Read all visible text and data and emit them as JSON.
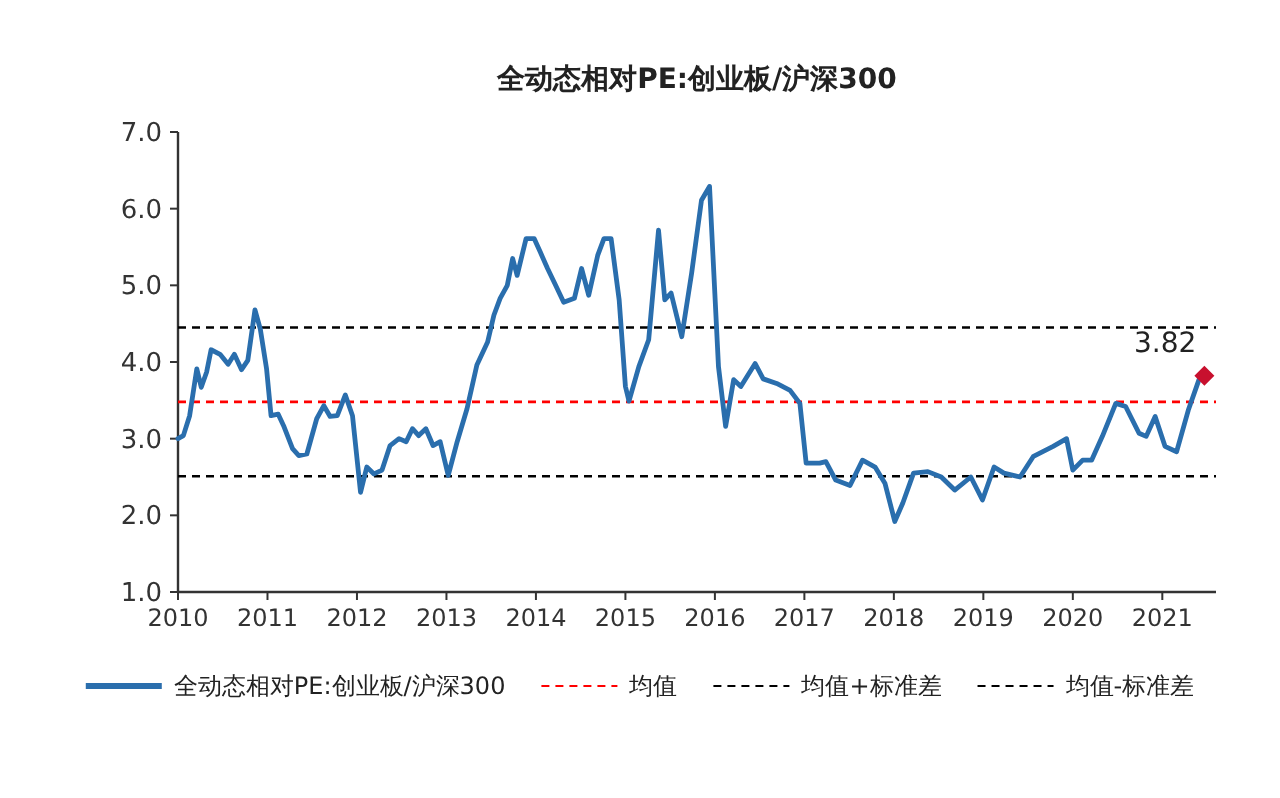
{
  "chart_data": {
    "type": "line",
    "title": "全动态相对PE:创业板/沪深300",
    "xlim": [
      2010,
      2021.6
    ],
    "xticks": [
      2010,
      2011,
      2012,
      2013,
      2014,
      2015,
      2016,
      2017,
      2018,
      2019,
      2020,
      2021
    ],
    "ylim": [
      1,
      7
    ],
    "yticks": [
      {
        "value": 1,
        "label": "1.0"
      },
      {
        "value": 2,
        "label": "2.0"
      },
      {
        "value": 3,
        "label": "3.0"
      },
      {
        "value": 4,
        "label": "4.0"
      },
      {
        "value": 5,
        "label": "5.0"
      },
      {
        "value": 6,
        "label": "6.0"
      },
      {
        "value": 7,
        "label": "7.0"
      }
    ],
    "grid": false,
    "legend": "bottom",
    "marker": "none",
    "line_style": "solid",
    "series": [
      {
        "name": "全动态相对PE:创业板/沪深300",
        "color": "#2a6ead",
        "x": [
          2010.0,
          2010.06,
          2010.13,
          2010.21,
          2010.26,
          2010.32,
          2010.37,
          2010.47,
          2010.56,
          2010.63,
          2010.71,
          2010.78,
          2010.86,
          2010.92,
          2010.99,
          2011.04,
          2011.12,
          2011.18,
          2011.28,
          2011.35,
          2011.44,
          2011.55,
          2011.63,
          2011.7,
          2011.78,
          2011.87,
          2011.95,
          2012.04,
          2012.11,
          2012.19,
          2012.28,
          2012.37,
          2012.47,
          2012.55,
          2012.62,
          2012.69,
          2012.77,
          2012.85,
          2012.93,
          2013.02,
          2013.12,
          2013.23,
          2013.34,
          2013.46,
          2013.53,
          2013.6,
          2013.68,
          2013.74,
          2013.79,
          2013.89,
          2013.98,
          2014.05,
          2014.13,
          2014.22,
          2014.31,
          2014.43,
          2014.51,
          2014.59,
          2014.69,
          2014.76,
          2014.84,
          2014.93,
          2015.0,
          2015.04,
          2015.15,
          2015.26,
          2015.37,
          2015.44,
          2015.51,
          2015.63,
          2015.74,
          2015.85,
          2015.94,
          2016.04,
          2016.12,
          2016.21,
          2016.29,
          2016.45,
          2016.54,
          2016.69,
          2016.84,
          2016.95,
          2017.02,
          2017.17,
          2017.24,
          2017.35,
          2017.51,
          2017.65,
          2017.79,
          2017.9,
          2018.01,
          2018.1,
          2018.22,
          2018.38,
          2018.53,
          2018.68,
          2018.86,
          2018.99,
          2019.12,
          2019.23,
          2019.41,
          2019.56,
          2019.78,
          2019.93,
          2020.0,
          2020.11,
          2020.21,
          2020.33,
          2020.48,
          2020.59,
          2020.74,
          2020.82,
          2020.92,
          2021.03,
          2021.16,
          2021.29,
          2021.41,
          2021.47
        ],
        "values": [
          3.0,
          3.04,
          3.3,
          3.91,
          3.67,
          3.87,
          4.16,
          4.1,
          3.97,
          4.1,
          3.9,
          4.02,
          4.68,
          4.43,
          3.91,
          3.3,
          3.32,
          3.17,
          2.87,
          2.78,
          2.8,
          3.26,
          3.43,
          3.29,
          3.3,
          3.57,
          3.3,
          2.3,
          2.63,
          2.54,
          2.59,
          2.91,
          3.0,
          2.96,
          3.13,
          3.04,
          3.13,
          2.91,
          2.96,
          2.52,
          2.96,
          3.39,
          3.96,
          4.26,
          4.61,
          4.83,
          5.0,
          5.35,
          5.13,
          5.61,
          5.61,
          5.43,
          5.22,
          5.0,
          4.78,
          4.83,
          5.22,
          4.87,
          5.39,
          5.61,
          5.61,
          4.81,
          3.68,
          3.49,
          3.94,
          4.29,
          5.72,
          4.81,
          4.9,
          4.33,
          5.16,
          6.11,
          6.29,
          3.94,
          3.16,
          3.77,
          3.68,
          3.98,
          3.78,
          3.72,
          3.63,
          3.46,
          2.68,
          2.68,
          2.7,
          2.46,
          2.39,
          2.72,
          2.63,
          2.42,
          1.92,
          2.16,
          2.55,
          2.57,
          2.5,
          2.33,
          2.5,
          2.2,
          2.63,
          2.55,
          2.5,
          2.77,
          2.9,
          3.0,
          2.59,
          2.72,
          2.72,
          3.03,
          3.46,
          3.42,
          3.07,
          3.03,
          3.29,
          2.9,
          2.83,
          3.37,
          3.77,
          3.82
        ]
      },
      {
        "type": "scatter",
        "marker": "diamond",
        "color": "#c8102e",
        "x": [
          2021.47
        ],
        "values": [
          3.82
        ]
      }
    ],
    "ref_lines": [
      {
        "axis": "y",
        "value": 3.48,
        "label": "均值",
        "color": "#ff0000",
        "line_style": "dashed"
      },
      {
        "axis": "y",
        "value": 4.45,
        "label": "均值+标准差",
        "color": "#000000",
        "line_style": "dashed"
      },
      {
        "axis": "y",
        "value": 2.51,
        "label": "均值-标准差",
        "color": "#000000",
        "line_style": "dashed"
      }
    ],
    "annotations": [
      {
        "text": "3.82",
        "x": 2021.47,
        "y": 3.82
      }
    ]
  }
}
